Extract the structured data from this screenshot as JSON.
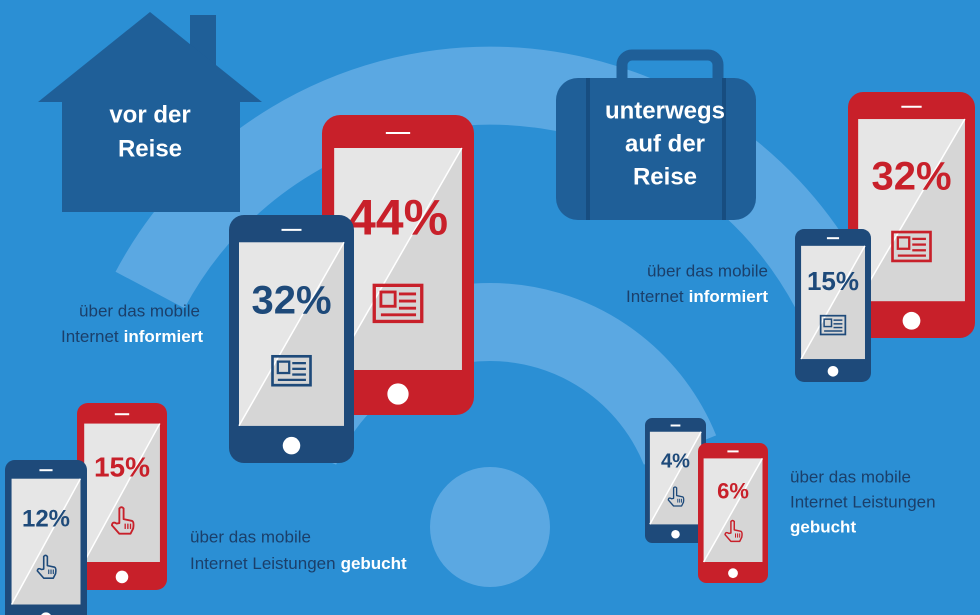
{
  "before": {
    "title_lines": [
      "vor der",
      "Reise"
    ],
    "informed": {
      "caption": [
        "über das mobile",
        "Internet"
      ],
      "caption_bold": "informiert",
      "phones": [
        "32%",
        "44%"
      ]
    },
    "booked": {
      "caption": [
        "über das mobile",
        "Internet Leistungen"
      ],
      "caption_bold": "gebucht",
      "phones": [
        "12%",
        "15%"
      ]
    }
  },
  "during": {
    "title_lines": [
      "unterwegs",
      "auf der",
      "Reise"
    ],
    "informed": {
      "caption": [
        "über das mobile",
        "Internet"
      ],
      "caption_bold": "informiert",
      "phones": [
        "15%",
        "32%"
      ]
    },
    "booked": {
      "caption": [
        "über das mobile",
        "Internet Leistungen"
      ],
      "caption_bold": "gebucht",
      "phones": [
        "4%",
        "6%"
      ]
    }
  }
}
